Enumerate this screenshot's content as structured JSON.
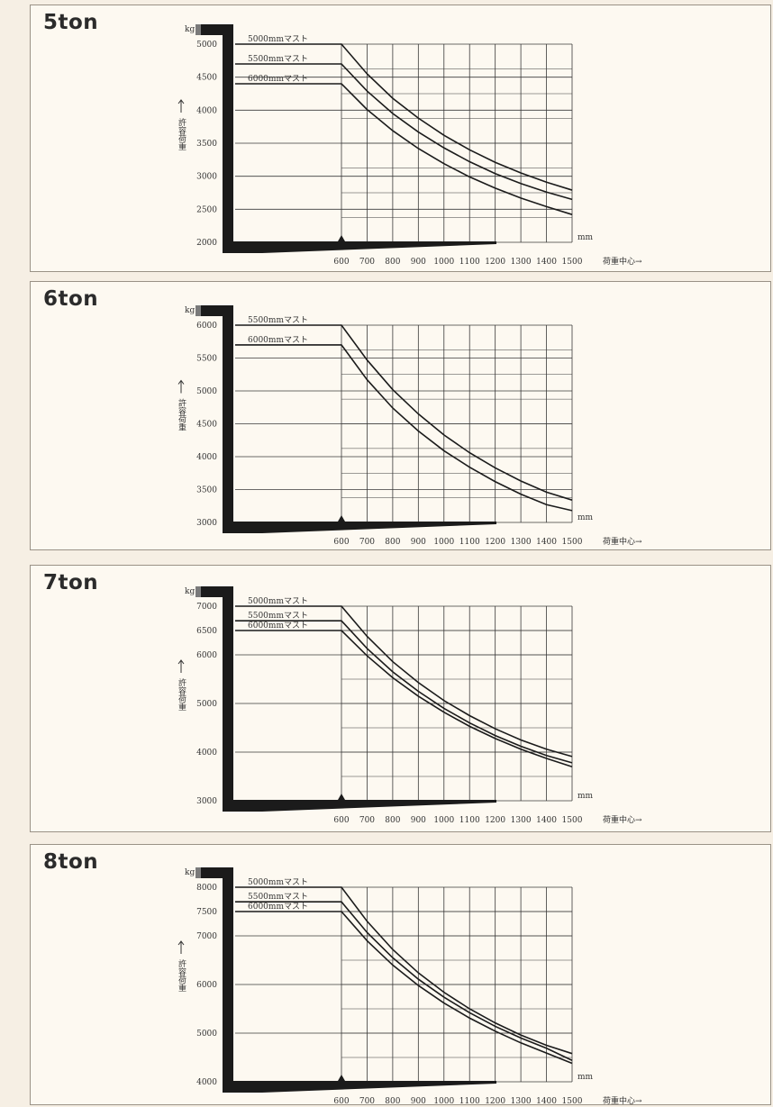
{
  "charts": [
    {
      "title": "5ton",
      "chart_data": {
        "type": "line",
        "title": "5ton",
        "yunit": "kg",
        "ylabel": "許容荷重",
        "xunit": "mm",
        "xlabel": "荷重中心→",
        "xlim": [
          500,
          1500
        ],
        "ylim": [
          2000,
          5000
        ],
        "xticks": [
          "600",
          "700",
          "800",
          "900",
          "1000",
          "1100",
          "1200",
          "1300",
          "1400",
          "1500"
        ],
        "yticks": [
          "5000",
          "4500",
          "4000",
          "3500",
          "3000",
          "2500",
          "2000"
        ],
        "series": [
          {
            "name": "5000mmマスト",
            "x": [
              500,
              600,
              700,
              800,
              900,
              1000,
              1100,
              1200,
              1300,
              1400,
              1500
            ],
            "y": [
              5000,
              5000,
              4550,
              4180,
              3880,
              3620,
              3400,
              3210,
              3050,
              2910,
              2790
            ]
          },
          {
            "name": "5500mmマスト",
            "x": [
              500,
              600,
              700,
              800,
              900,
              1000,
              1100,
              1200,
              1300,
              1400,
              1500
            ],
            "y": [
              4700,
              4700,
              4290,
              3950,
              3670,
              3430,
              3220,
              3040,
              2890,
              2760,
              2650
            ]
          },
          {
            "name": "6000mmマスト",
            "x": [
              500,
              600,
              700,
              800,
              900,
              1000,
              1100,
              1200,
              1300,
              1400,
              1500
            ],
            "y": [
              4400,
              4400,
              4010,
              3690,
              3420,
              3190,
              2990,
              2820,
              2670,
              2540,
              2420
            ]
          }
        ]
      }
    },
    {
      "title": "6ton",
      "chart_data": {
        "type": "line",
        "title": "6ton",
        "yunit": "kg",
        "ylabel": "許容荷重",
        "xunit": "mm",
        "xlabel": "荷重中心→",
        "xlim": [
          500,
          1500
        ],
        "ylim": [
          3000,
          6000
        ],
        "xticks": [
          "600",
          "700",
          "800",
          "900",
          "1000",
          "1100",
          "1200",
          "1300",
          "1400",
          "1500"
        ],
        "yticks": [
          "6000",
          "5500",
          "5000",
          "4500",
          "4000",
          "3500",
          "3000"
        ],
        "series": [
          {
            "name": "5500mmマスト",
            "x": [
              500,
              600,
              700,
              800,
              900,
              1000,
              1100,
              1200,
              1300,
              1400,
              1500
            ],
            "y": [
              6000,
              6000,
              5470,
              5020,
              4650,
              4330,
              4060,
              3830,
              3630,
              3460,
              3340
            ]
          },
          {
            "name": "6000mmマスト",
            "x": [
              500,
              600,
              700,
              800,
              900,
              1000,
              1100,
              1200,
              1300,
              1400,
              1500
            ],
            "y": [
              5700,
              5700,
              5170,
              4740,
              4390,
              4090,
              3840,
              3620,
              3430,
              3270,
              3180
            ]
          }
        ]
      }
    },
    {
      "title": "7ton",
      "chart_data": {
        "type": "line",
        "title": "7ton",
        "yunit": "kg",
        "ylabel": "許容荷重",
        "xunit": "mm",
        "xlabel": "荷重中心→",
        "xlim": [
          500,
          1500
        ],
        "ylim": [
          3000,
          7000
        ],
        "xticks": [
          "600",
          "700",
          "800",
          "900",
          "1000",
          "1100",
          "1200",
          "1300",
          "1400",
          "1500"
        ],
        "yticks": [
          "7000",
          "6500",
          "6000",
          "5000",
          "4000",
          "3000"
        ],
        "series": [
          {
            "name": "5000mmマスト",
            "x": [
              500,
              600,
              700,
              800,
              900,
              1000,
              1100,
              1200,
              1300,
              1400,
              1500
            ],
            "y": [
              7000,
              7000,
              6380,
              5860,
              5430,
              5060,
              4750,
              4480,
              4250,
              4060,
              3910
            ]
          },
          {
            "name": "5500mmマスト",
            "x": [
              500,
              600,
              700,
              800,
              900,
              1000,
              1100,
              1200,
              1300,
              1400,
              1500
            ],
            "y": [
              6700,
              6700,
              6130,
              5650,
              5250,
              4900,
              4600,
              4340,
              4120,
              3930,
              3780
            ]
          },
          {
            "name": "6000mmマスト",
            "x": [
              500,
              600,
              700,
              800,
              900,
              1000,
              1100,
              1200,
              1300,
              1400,
              1500
            ],
            "y": [
              6500,
              6500,
              5980,
              5530,
              5150,
              4820,
              4530,
              4280,
              4060,
              3870,
              3700
            ]
          }
        ]
      }
    },
    {
      "title": "8ton",
      "chart_data": {
        "type": "line",
        "title": "8ton",
        "yunit": "kg",
        "ylabel": "許容荷重",
        "xunit": "mm",
        "xlabel": "荷重中心→",
        "xlim": [
          500,
          1500
        ],
        "ylim": [
          4000,
          8000
        ],
        "xticks": [
          "600",
          "700",
          "800",
          "900",
          "1000",
          "1100",
          "1200",
          "1300",
          "1400",
          "1500"
        ],
        "yticks": [
          "8000",
          "7500",
          "7000",
          "6000",
          "5000",
          "4000"
        ],
        "series": [
          {
            "name": "5000mmマスト",
            "x": [
              500,
              600,
              700,
              800,
              900,
              1000,
              1100,
              1200,
              1300,
              1400,
              1500
            ],
            "y": [
              8000,
              8000,
              7300,
              6720,
              6240,
              5840,
              5500,
              5210,
              4960,
              4750,
              4580
            ]
          },
          {
            "name": "5500mmマスト",
            "x": [
              500,
              600,
              700,
              800,
              900,
              1000,
              1100,
              1200,
              1300,
              1400,
              1500
            ],
            "y": [
              7700,
              7700,
              7070,
              6550,
              6110,
              5740,
              5420,
              5140,
              4900,
              4690,
              4440
            ]
          },
          {
            "name": "6000mmマスト",
            "x": [
              500,
              600,
              700,
              800,
              900,
              1000,
              1100,
              1200,
              1300,
              1400,
              1500
            ],
            "y": [
              7500,
              7500,
              6900,
              6400,
              5980,
              5620,
              5310,
              5040,
              4800,
              4590,
              4380
            ]
          }
        ]
      }
    }
  ]
}
